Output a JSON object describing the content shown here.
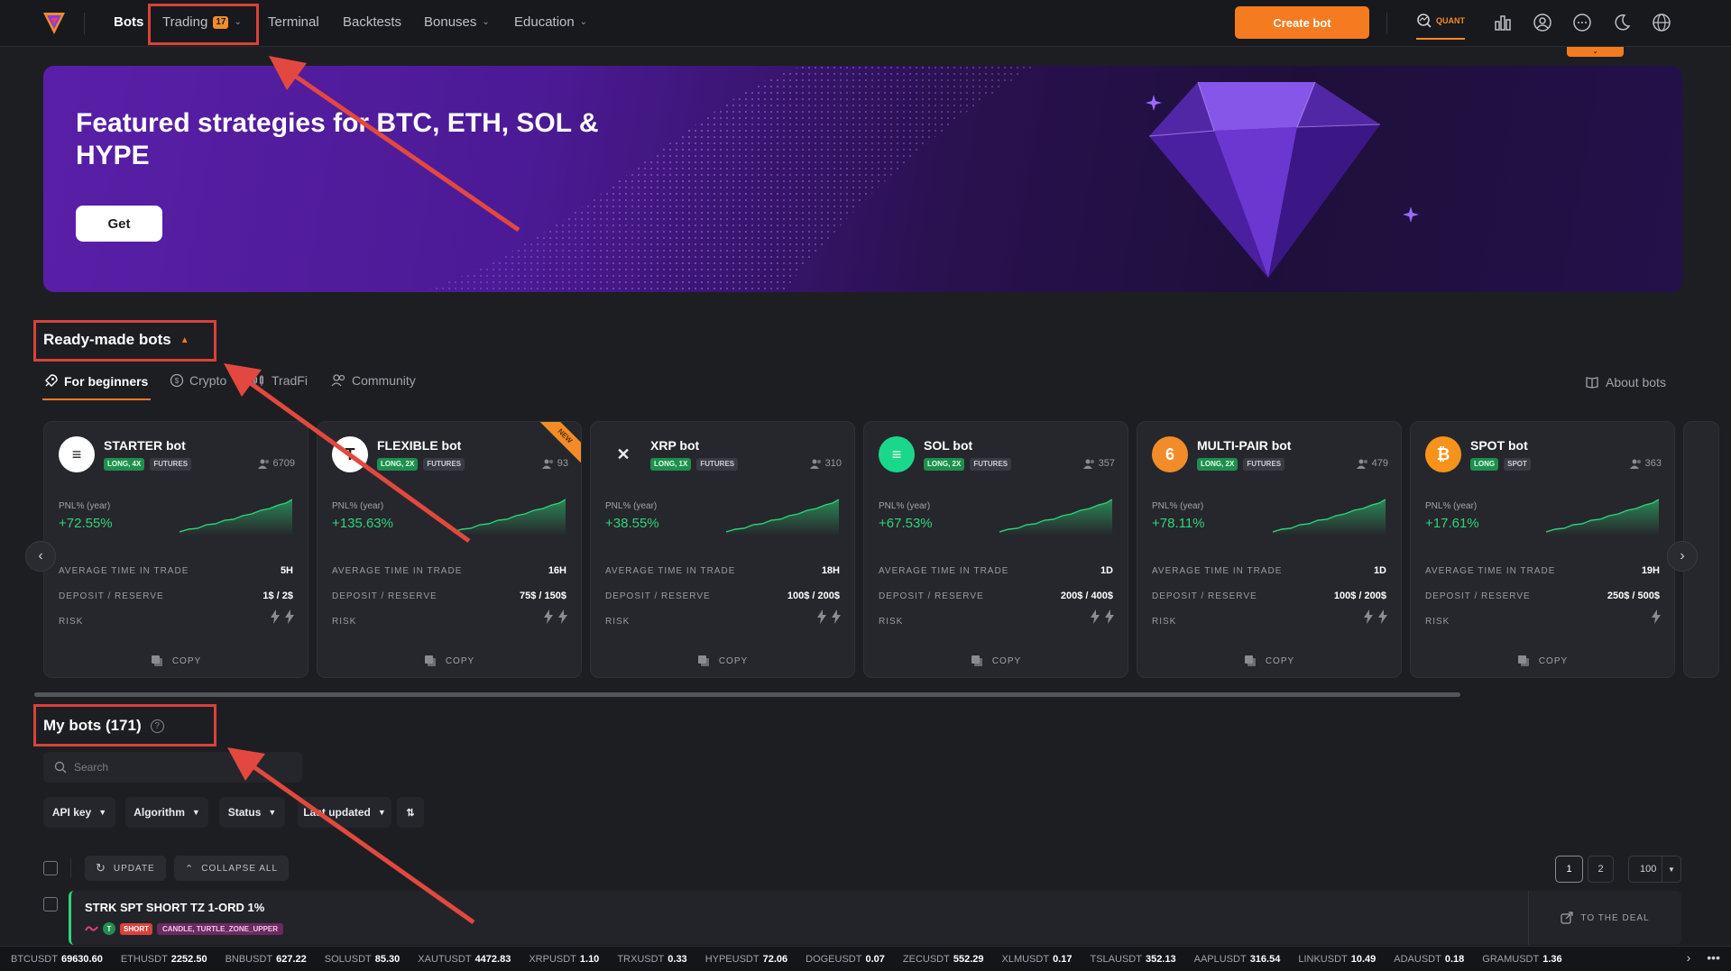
{
  "nav": {
    "items": [
      {
        "label": "Bots"
      },
      {
        "label": "Trading",
        "badge": "17"
      },
      {
        "label": "Terminal"
      },
      {
        "label": "Backtests"
      },
      {
        "label": "Bonuses"
      },
      {
        "label": "Education"
      }
    ],
    "create_bot": "Create bot",
    "quant": "QUANT"
  },
  "banner": {
    "title": "Featured strategies for BTC, ETH, SOL & HYPE",
    "button": "Get"
  },
  "ready_made": {
    "title": "Ready-made bots",
    "tabs": [
      "For beginners",
      "Crypto",
      "TradFi",
      "Community"
    ],
    "about": "About bots",
    "new_label": "NEW",
    "cards": [
      {
        "name": "STARTER bot",
        "tag1": "LONG, 4X",
        "tag2": "FUTURES",
        "users": "6709",
        "pnl_label": "PNL% (year)",
        "pnl": "+72.55%",
        "time_label": "AVERAGE TIME IN TRADE",
        "time": "5H",
        "deposit_label": "DEPOSIT / RESERVE",
        "deposit": "1$ / 2$",
        "risk_label": "RISK",
        "risk": 2,
        "copy": "COPY"
      },
      {
        "name": "FLEXIBLE bot",
        "tag1": "LONG, 2X",
        "tag2": "FUTURES",
        "users": "93",
        "pnl_label": "PNL% (year)",
        "pnl": "+135.63%",
        "time_label": "AVERAGE TIME IN TRADE",
        "time": "16H",
        "deposit_label": "DEPOSIT / RESERVE",
        "deposit": "75$ / 150$",
        "risk_label": "RISK",
        "risk": 2,
        "copy": "COPY"
      },
      {
        "name": "XRP bot",
        "tag1": "LONG, 1X",
        "tag2": "FUTURES",
        "users": "310",
        "pnl_label": "PNL% (year)",
        "pnl": "+38.55%",
        "time_label": "AVERAGE TIME IN TRADE",
        "time": "18H",
        "deposit_label": "DEPOSIT / RESERVE",
        "deposit": "100$ / 200$",
        "risk_label": "RISK",
        "risk": 2,
        "copy": "COPY"
      },
      {
        "name": "SOL bot",
        "tag1": "LONG, 2X",
        "tag2": "FUTURES",
        "users": "357",
        "pnl_label": "PNL% (year)",
        "pnl": "+67.53%",
        "time_label": "AVERAGE TIME IN TRADE",
        "time": "1D",
        "deposit_label": "DEPOSIT / RESERVE",
        "deposit": "200$ / 400$",
        "risk_label": "RISK",
        "risk": 2,
        "copy": "COPY"
      },
      {
        "name": "MULTI-PAIR bot",
        "tag1": "LONG, 2X",
        "tag2": "FUTURES",
        "users": "479",
        "pnl_label": "PNL% (year)",
        "pnl": "+78.11%",
        "time_label": "AVERAGE TIME IN TRADE",
        "time": "1D",
        "deposit_label": "DEPOSIT / RESERVE",
        "deposit": "100$ / 200$",
        "risk_label": "RISK",
        "risk": 2,
        "copy": "COPY"
      },
      {
        "name": "SPOT bot",
        "tag1": "LONG",
        "tag2": "SPOT",
        "users": "363",
        "pnl_label": "PNL% (year)",
        "pnl": "+17.61%",
        "time_label": "AVERAGE TIME IN TRADE",
        "time": "19H",
        "deposit_label": "DEPOSIT / RESERVE",
        "deposit": "250$ / 500$",
        "risk_label": "RISK",
        "risk": 1,
        "copy": "COPY"
      }
    ]
  },
  "my_bots": {
    "title": "My bots (171)",
    "help": "?",
    "search_placeholder": "Search",
    "filters": [
      "API key",
      "Algorithm",
      "Status",
      "Last updated"
    ],
    "update": "UPDATE",
    "collapse": "COLLAPSE ALL",
    "pages": [
      "1",
      "2"
    ],
    "per_page": "100",
    "bot": {
      "name": "STRK SPT SHORT TZ 1-ORD 1%",
      "direction": "SHORT",
      "strategy": "CANDLE, TURTLE_ZONE_UPPER",
      "action": "TO THE DEAL"
    }
  },
  "ticker": [
    {
      "sym": "BTCUSDT",
      "price": "69630.60"
    },
    {
      "sym": "ETHUSDT",
      "price": "2252.50"
    },
    {
      "sym": "BNBUSDT",
      "price": "627.22"
    },
    {
      "sym": "SOLUSDT",
      "price": "85.30"
    },
    {
      "sym": "XAUTUSDT",
      "price": "4472.83"
    },
    {
      "sym": "XRPUSDT",
      "price": "1.10"
    },
    {
      "sym": "TRXUSDT",
      "price": "0.33"
    },
    {
      "sym": "HYPEUSDT",
      "price": "72.06"
    },
    {
      "sym": "DOGEUSDT",
      "price": "0.07"
    },
    {
      "sym": "ZECUSDT",
      "price": "552.29"
    },
    {
      "sym": "XLMUSDT",
      "price": "0.17"
    },
    {
      "sym": "TSLAUSDT",
      "price": "352.13"
    },
    {
      "sym": "AAPLUSDT",
      "price": "316.54"
    },
    {
      "sym": "LINKUSDT",
      "price": "10.49"
    },
    {
      "sym": "ADAUSDT",
      "price": "0.18"
    },
    {
      "sym": "GRAMUSDT",
      "price": "1.36"
    }
  ],
  "colors": {
    "accent": "#f47b20",
    "positive": "#2ed47a",
    "highlight": "#d9423a"
  }
}
